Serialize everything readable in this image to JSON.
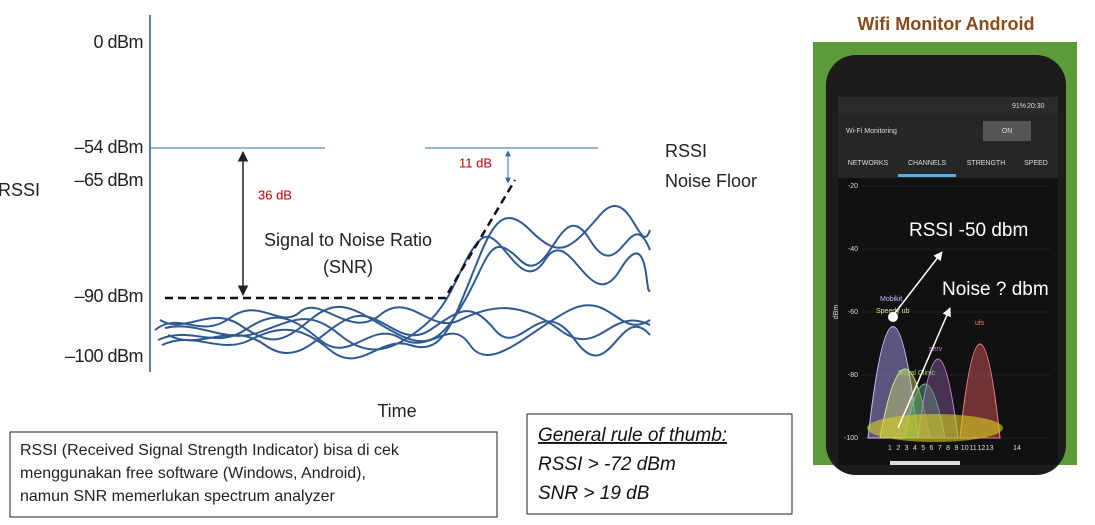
{
  "snr_diagram": {
    "y_labels": [
      "0 dBm",
      "–54 dBm",
      "–65 dBm",
      "–90 dBm",
      "–100 dBm"
    ],
    "y_axis_label": "RSSI",
    "x_axis_label": "Time",
    "gap_label": "36 dB",
    "margin_label": "11 dB",
    "snr_label": "Signal to Noise Ratio",
    "snr_abbr": "(SNR)",
    "legend": [
      "RSSI",
      "Noise Floor"
    ]
  },
  "note": {
    "lines": [
      "RSSI (Received Signal Strength Indicator) bisa di cek",
      "menggunakan free software (Windows, Android),",
      "namun SNR memerlukan spectrum analyzer"
    ]
  },
  "rule": {
    "title": "General rule of thumb:",
    "lines": [
      "RSSI >  -72 dBm",
      "SNR > 19 dB"
    ]
  },
  "phone": {
    "title": "Wifi Monitor Android",
    "battery": "91%",
    "clock": "20:30",
    "app_title": "Wi-Fi Monitoring",
    "toggle": "ON",
    "tabs": [
      "NETWORKS",
      "CHANNELS",
      "STRENGTH",
      "SPEED"
    ],
    "y_ticks": [
      "-20",
      "-40",
      "-60",
      "-80",
      "-100"
    ],
    "y_unit": "dBm",
    "channels": [
      "1",
      "2",
      "3",
      "4",
      "5",
      "6",
      "7",
      "8",
      "9",
      "10",
      "11",
      "12",
      "13",
      "14"
    ],
    "networks": [
      "Mobikit",
      "Speedy ub",
      "serv",
      "Royal Clinic",
      "ufs"
    ],
    "annotations": [
      "RSSI -50 dbm",
      "Noise ? dbm"
    ]
  }
}
